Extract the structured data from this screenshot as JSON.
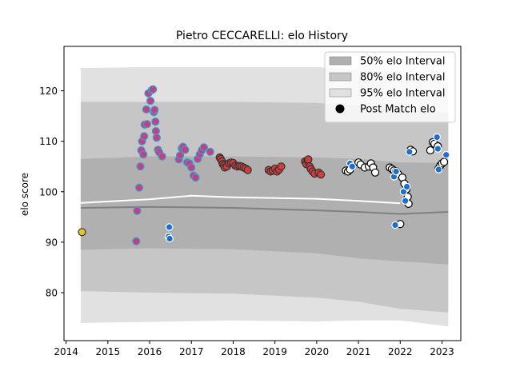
{
  "chart_data": {
    "type": "scatter",
    "title": "Pietro CECCARELLI: elo History",
    "xlabel": "",
    "ylabel": "elo score",
    "xlim": [
      2013.95,
      2023.45
    ],
    "ylim": [
      70.5,
      128.8
    ],
    "xticks": [
      2014,
      2015,
      2016,
      2017,
      2018,
      2019,
      2020,
      2021,
      2022,
      2023
    ],
    "yticks": [
      80,
      90,
      100,
      110,
      120
    ],
    "grid": false,
    "legend_position": "top-right",
    "legend": [
      {
        "label": "50% elo Interval",
        "kind": "band",
        "color": "#b0b0b0"
      },
      {
        "label": "80% elo Interval",
        "kind": "band",
        "color": "#c6c6c6"
      },
      {
        "label": "95% elo Interval",
        "kind": "band",
        "color": "#e1e1e1"
      },
      {
        "label": "Post Match elo",
        "kind": "marker",
        "color": "#000000"
      }
    ],
    "colors": {
      "band95": "#e1e1e1",
      "band80": "#c6c6c6",
      "band50": "#b0b0b0",
      "mean_line": "#808080",
      "mean_line_white": "#ffffff",
      "gold": "#e8c030",
      "magenta": "#c0408a",
      "teal": "#3aa0c8",
      "red": "#d03c3c",
      "white": "#ffffff",
      "blue": "#1a6fd0"
    },
    "bands": {
      "x": [
        2014.35,
        2016.0,
        2018.0,
        2020.0,
        2021.0,
        2022.0,
        2023.15
      ],
      "p95_hi": [
        124.5,
        124.7,
        124.7,
        124.7,
        124.2,
        123.2,
        121.5
      ],
      "p80_hi": [
        117.8,
        117.8,
        117.8,
        117.6,
        117.0,
        116.3,
        115.6
      ],
      "p50_hi": [
        106.5,
        107.0,
        107.0,
        106.8,
        106.5,
        105.8,
        105.7
      ],
      "p50_lo": [
        88.5,
        88.8,
        88.6,
        87.8,
        86.8,
        86.2,
        85.6
      ],
      "p80_lo": [
        80.3,
        80.0,
        79.8,
        79.0,
        78.2,
        76.8,
        76.1
      ],
      "p95_lo": [
        74.0,
        74.2,
        74.5,
        74.3,
        74.5,
        74.5,
        73.3
      ]
    },
    "mean_line": {
      "x": [
        2014.35,
        2016.0,
        2018.0,
        2020.0,
        2021.0,
        2022.0,
        2023.15
      ],
      "y": [
        96.8,
        97.0,
        96.8,
        96.3,
        96.0,
        95.6,
        96.0
      ]
    },
    "white_line": {
      "x": [
        2014.35,
        2016.0,
        2017.0,
        2018.0,
        2020.0,
        2021.0,
        2022.0
      ],
      "y": [
        97.8,
        98.5,
        99.2,
        98.9,
        98.6,
        98.2,
        97.7
      ]
    },
    "series": [
      {
        "color_key": "gold",
        "points": [
          [
            2014.38,
            92.0
          ]
        ]
      },
      {
        "color_key": "magenta",
        "points": [
          [
            2015.68,
            90.2
          ],
          [
            2015.7,
            96.2
          ],
          [
            2015.75,
            100.8
          ],
          [
            2015.78,
            105.0
          ],
          [
            2015.8,
            108.2
          ],
          [
            2015.82,
            110.0
          ],
          [
            2015.85,
            107.4
          ],
          [
            2015.87,
            111.0
          ],
          [
            2015.88,
            113.3
          ],
          [
            2015.92,
            116.3
          ],
          [
            2015.94,
            113.4
          ],
          [
            2015.97,
            119.5
          ],
          [
            2016.02,
            118.0
          ],
          [
            2016.05,
            120.1
          ],
          [
            2016.08,
            120.3
          ],
          [
            2016.1,
            115.8
          ],
          [
            2016.12,
            116.2
          ],
          [
            2016.14,
            113.9
          ],
          [
            2016.15,
            112.0
          ],
          [
            2016.17,
            110.7
          ],
          [
            2016.2,
            108.3
          ],
          [
            2016.23,
            107.8
          ],
          [
            2016.3,
            107.0
          ]
        ]
      },
      {
        "color_key": "teal",
        "points": [
          [
            2016.7,
            106.4
          ],
          [
            2016.73,
            107.2
          ],
          [
            2016.77,
            108.6
          ],
          [
            2016.8,
            108.9
          ],
          [
            2016.85,
            108.3
          ],
          [
            2016.9,
            105.8
          ],
          [
            2016.95,
            105.6
          ],
          [
            2017.0,
            104.8
          ],
          [
            2017.05,
            103.2
          ],
          [
            2017.1,
            102.8
          ],
          [
            2017.15,
            106.5
          ],
          [
            2017.2,
            107.4
          ],
          [
            2017.25,
            108.2
          ],
          [
            2017.3,
            108.8
          ],
          [
            2017.45,
            107.9
          ]
        ]
      },
      {
        "color_key": "blue_on_teal",
        "points": [
          [
            2016.45,
            91.1
          ],
          [
            2016.48,
            90.7
          ],
          [
            2016.47,
            93.0
          ]
        ]
      },
      {
        "color_key": "red",
        "points": [
          [
            2017.68,
            106.8
          ],
          [
            2017.7,
            106.5
          ],
          [
            2017.73,
            106.0
          ],
          [
            2017.75,
            105.5
          ],
          [
            2017.78,
            105.2
          ],
          [
            2017.8,
            104.8
          ],
          [
            2017.85,
            105.0
          ],
          [
            2017.9,
            105.6
          ],
          [
            2017.95,
            105.8
          ],
          [
            2018.0,
            105.7
          ],
          [
            2018.05,
            105.2
          ],
          [
            2018.1,
            105.0
          ],
          [
            2018.15,
            105.1
          ],
          [
            2018.2,
            105.0
          ],
          [
            2018.25,
            104.8
          ],
          [
            2018.3,
            104.6
          ],
          [
            2018.35,
            104.3
          ],
          [
            2018.85,
            104.3
          ],
          [
            2018.9,
            104.0
          ],
          [
            2018.95,
            104.2
          ],
          [
            2019.0,
            104.6
          ],
          [
            2019.05,
            104.0
          ],
          [
            2019.1,
            104.4
          ],
          [
            2019.15,
            105.0
          ],
          [
            2019.72,
            106.0
          ],
          [
            2019.75,
            105.5
          ],
          [
            2019.78,
            106.2
          ],
          [
            2019.8,
            106.4
          ],
          [
            2019.83,
            105.0
          ],
          [
            2019.86,
            104.5
          ],
          [
            2019.9,
            104.0
          ],
          [
            2019.95,
            103.6
          ],
          [
            2020.05,
            103.8
          ],
          [
            2020.1,
            103.4
          ]
        ]
      },
      {
        "color_key": "white",
        "points": [
          [
            2020.7,
            104.2
          ],
          [
            2020.75,
            104.0
          ],
          [
            2020.8,
            104.4
          ],
          [
            2021.0,
            105.8
          ],
          [
            2021.05,
            105.4
          ],
          [
            2021.15,
            104.8
          ],
          [
            2021.25,
            105.0
          ],
          [
            2021.3,
            105.6
          ],
          [
            2021.35,
            104.8
          ],
          [
            2021.4,
            103.8
          ],
          [
            2021.75,
            104.8
          ],
          [
            2021.8,
            104.5
          ],
          [
            2021.85,
            104.2
          ],
          [
            2021.9,
            104.0
          ],
          [
            2021.95,
            103.5
          ],
          [
            2022.05,
            102.8
          ],
          [
            2022.1,
            101.6
          ],
          [
            2022.15,
            100.5
          ],
          [
            2022.18,
            99.0
          ],
          [
            2022.2,
            97.6
          ],
          [
            2022.25,
            108.3
          ],
          [
            2022.3,
            108.0
          ],
          [
            2022.72,
            108.2
          ],
          [
            2022.78,
            109.8
          ],
          [
            2022.82,
            109.5
          ],
          [
            2022.9,
            109.0
          ],
          [
            2022.92,
            104.6
          ],
          [
            2022.96,
            105.2
          ],
          [
            2023.0,
            105.6
          ],
          [
            2023.05,
            105.9
          ],
          [
            2022.0,
            93.6
          ]
        ]
      },
      {
        "color_key": "blue",
        "points": [
          [
            2020.8,
            105.6
          ],
          [
            2020.85,
            105.0
          ],
          [
            2021.85,
            103.0
          ],
          [
            2021.9,
            104.0
          ],
          [
            2021.88,
            93.4
          ],
          [
            2022.08,
            100.0
          ],
          [
            2022.12,
            98.2
          ],
          [
            2022.16,
            101.0
          ],
          [
            2022.22,
            107.9
          ],
          [
            2022.88,
            110.8
          ],
          [
            2022.9,
            108.5
          ],
          [
            2022.92,
            104.4
          ],
          [
            2023.1,
            107.3
          ]
        ]
      }
    ]
  }
}
